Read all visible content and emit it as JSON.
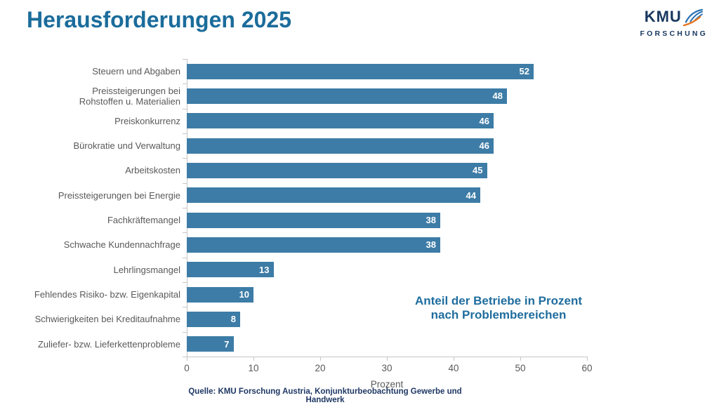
{
  "page": {
    "title": "Herausforderungen 2025"
  },
  "logo": {
    "name": "KMU",
    "subtitle": "FORSCHUNG"
  },
  "chart_data": {
    "type": "bar",
    "orientation": "horizontal",
    "title": "Herausforderungen 2025",
    "categories": [
      "Steuern und Abgaben",
      "Preissteigerungen bei\nRohstoffen u. Materialien",
      "Preiskonkurrenz",
      "Bürokratie und Verwaltung",
      "Arbeitskosten",
      "Preissteigerungen bei Energie",
      "Fachkräftemangel",
      "Schwache Kundennachfrage",
      "Lehrlingsmangel",
      "Fehlendes Risiko- bzw. Eigenkapital",
      "Schwierigkeiten bei Kreditaufnahme",
      "Zuliefer- bzw. Lieferkettenprobleme"
    ],
    "values": [
      52,
      48,
      46,
      46,
      45,
      44,
      38,
      38,
      13,
      10,
      8,
      7
    ],
    "xlabel": "Prozent",
    "xlim": [
      0,
      60
    ],
    "xticks": [
      0,
      10,
      20,
      30,
      40,
      50,
      60
    ],
    "grid": false,
    "legend": false,
    "value_labels_position": "inside-end",
    "annotation": {
      "line1": "Anteil der Betriebe in Prozent",
      "line2": "nach Problembereichen"
    }
  },
  "source": {
    "text": "Quelle: KMU Forschung Austria, Konjunkturbeobachtung Gewerbe und Handwerk"
  },
  "colors": {
    "bar": "#3d7ca6",
    "bar_value_label": "#ffffff",
    "title": "#1b6c9b",
    "annotation": "#1f6d9e",
    "axis_text": "#595959",
    "axis_line": "#c6c6c6",
    "source_text": "#1f3864",
    "logo_text": "#17375e",
    "logo_feather_blue": "#2d74b5",
    "logo_feather_orange": "#e87722"
  }
}
